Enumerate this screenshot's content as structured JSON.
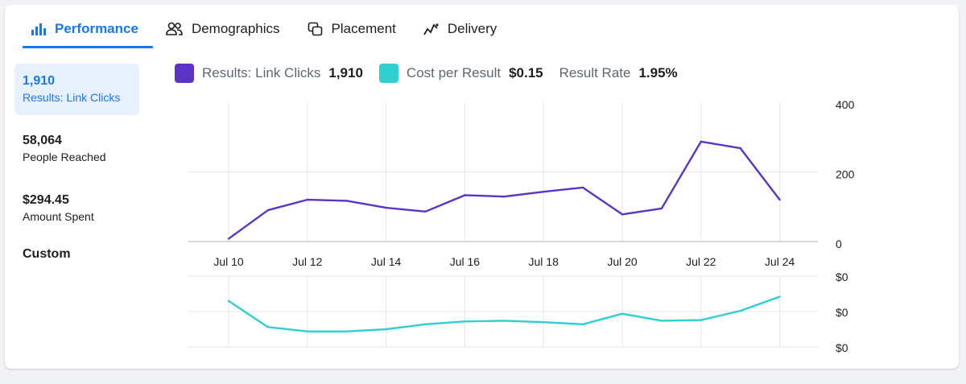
{
  "tabs": [
    {
      "label": "Performance",
      "icon": "bar-chart-icon"
    },
    {
      "label": "Demographics",
      "icon": "people-icon"
    },
    {
      "label": "Placement",
      "icon": "placement-icon"
    },
    {
      "label": "Delivery",
      "icon": "delivery-icon"
    }
  ],
  "metrics": [
    {
      "value": "1,910",
      "label": "Results: Link Clicks"
    },
    {
      "value": "58,064",
      "label": "People Reached"
    },
    {
      "value": "$294.45",
      "label": "Amount Spent"
    }
  ],
  "custom_label": "Custom",
  "legend": {
    "results_label": "Results: Link Clicks",
    "results_value": "1,910",
    "cost_label": "Cost per Result",
    "cost_value": "$0.15",
    "rate_label": "Result Rate",
    "rate_value": "1.95%"
  },
  "colors": {
    "accent": "#1877f2",
    "results": "#5b33c7",
    "cost": "#2ecfd0"
  },
  "chart_data": [
    {
      "type": "line",
      "title": "Results: Link Clicks",
      "x": [
        "Jul 10",
        "Jul 11",
        "Jul 12",
        "Jul 13",
        "Jul 14",
        "Jul 15",
        "Jul 16",
        "Jul 17",
        "Jul 18",
        "Jul 19",
        "Jul 20",
        "Jul 21",
        "Jul 22",
        "Jul 23",
        "Jul 24"
      ],
      "tick_labels": [
        "Jul 10",
        "Jul 12",
        "Jul 14",
        "Jul 16",
        "Jul 18",
        "Jul 20",
        "Jul 22",
        "Jul 24"
      ],
      "series": [
        {
          "name": "Results: Link Clicks",
          "values": [
            8,
            90,
            120,
            117,
            97,
            86,
            133,
            129,
            143,
            155,
            78,
            95,
            287,
            268,
            120
          ]
        }
      ],
      "ylim": [
        0,
        400
      ],
      "yticks": [
        "400",
        "200",
        "0"
      ]
    },
    {
      "type": "line",
      "title": "Cost per Result",
      "x": [
        "Jul 10",
        "Jul 11",
        "Jul 12",
        "Jul 13",
        "Jul 14",
        "Jul 15",
        "Jul 16",
        "Jul 17",
        "Jul 18",
        "Jul 19",
        "Jul 20",
        "Jul 21",
        "Jul 22",
        "Jul 23",
        "Jul 24"
      ],
      "series": [
        {
          "name": "Cost per Result",
          "values": [
            0.65,
            0.28,
            0.22,
            0.22,
            0.25,
            0.32,
            0.36,
            0.37,
            0.35,
            0.32,
            0.47,
            0.37,
            0.38,
            0.51,
            0.71
          ]
        }
      ],
      "ylim": [
        0,
        1
      ],
      "yticks": [
        "$0",
        "$0",
        "$0"
      ]
    }
  ]
}
